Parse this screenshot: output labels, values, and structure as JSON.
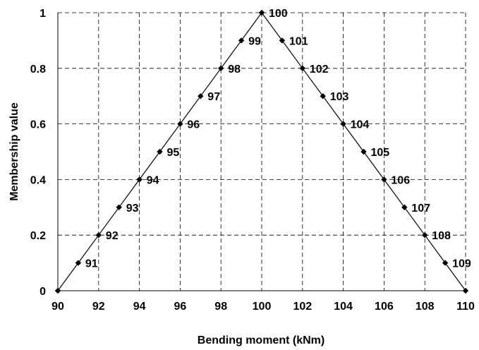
{
  "chart_data": {
    "type": "line",
    "xlabel": "Bending moment (kNm)",
    "ylabel": "Membership value",
    "xlim": [
      90,
      110
    ],
    "ylim": [
      0,
      1
    ],
    "x_ticks": [
      "90",
      "92",
      "94",
      "96",
      "98",
      "100",
      "102",
      "104",
      "106",
      "108",
      "110"
    ],
    "y_ticks": [
      "0",
      "0.2",
      "0.4",
      "0.6",
      "0.8",
      "1"
    ],
    "grid": true,
    "marker": "diamond",
    "series": [
      {
        "x": [
          90,
          91,
          92,
          93,
          94,
          95,
          96,
          97,
          98,
          99,
          100,
          101,
          102,
          103,
          104,
          105,
          106,
          107,
          108,
          109,
          110
        ],
        "y": [
          0,
          0.1,
          0.2,
          0.3,
          0.4,
          0.5,
          0.6,
          0.7,
          0.8,
          0.9,
          1,
          0.9,
          0.8,
          0.7,
          0.6,
          0.5,
          0.4,
          0.3,
          0.2,
          0.1,
          0
        ],
        "point_labels": [
          "",
          "91",
          "92",
          "93",
          "94",
          "95",
          "96",
          "97",
          "98",
          "99",
          "100",
          "101",
          "102",
          "103",
          "104",
          "105",
          "106",
          "107",
          "108",
          "109",
          ""
        ]
      }
    ]
  }
}
